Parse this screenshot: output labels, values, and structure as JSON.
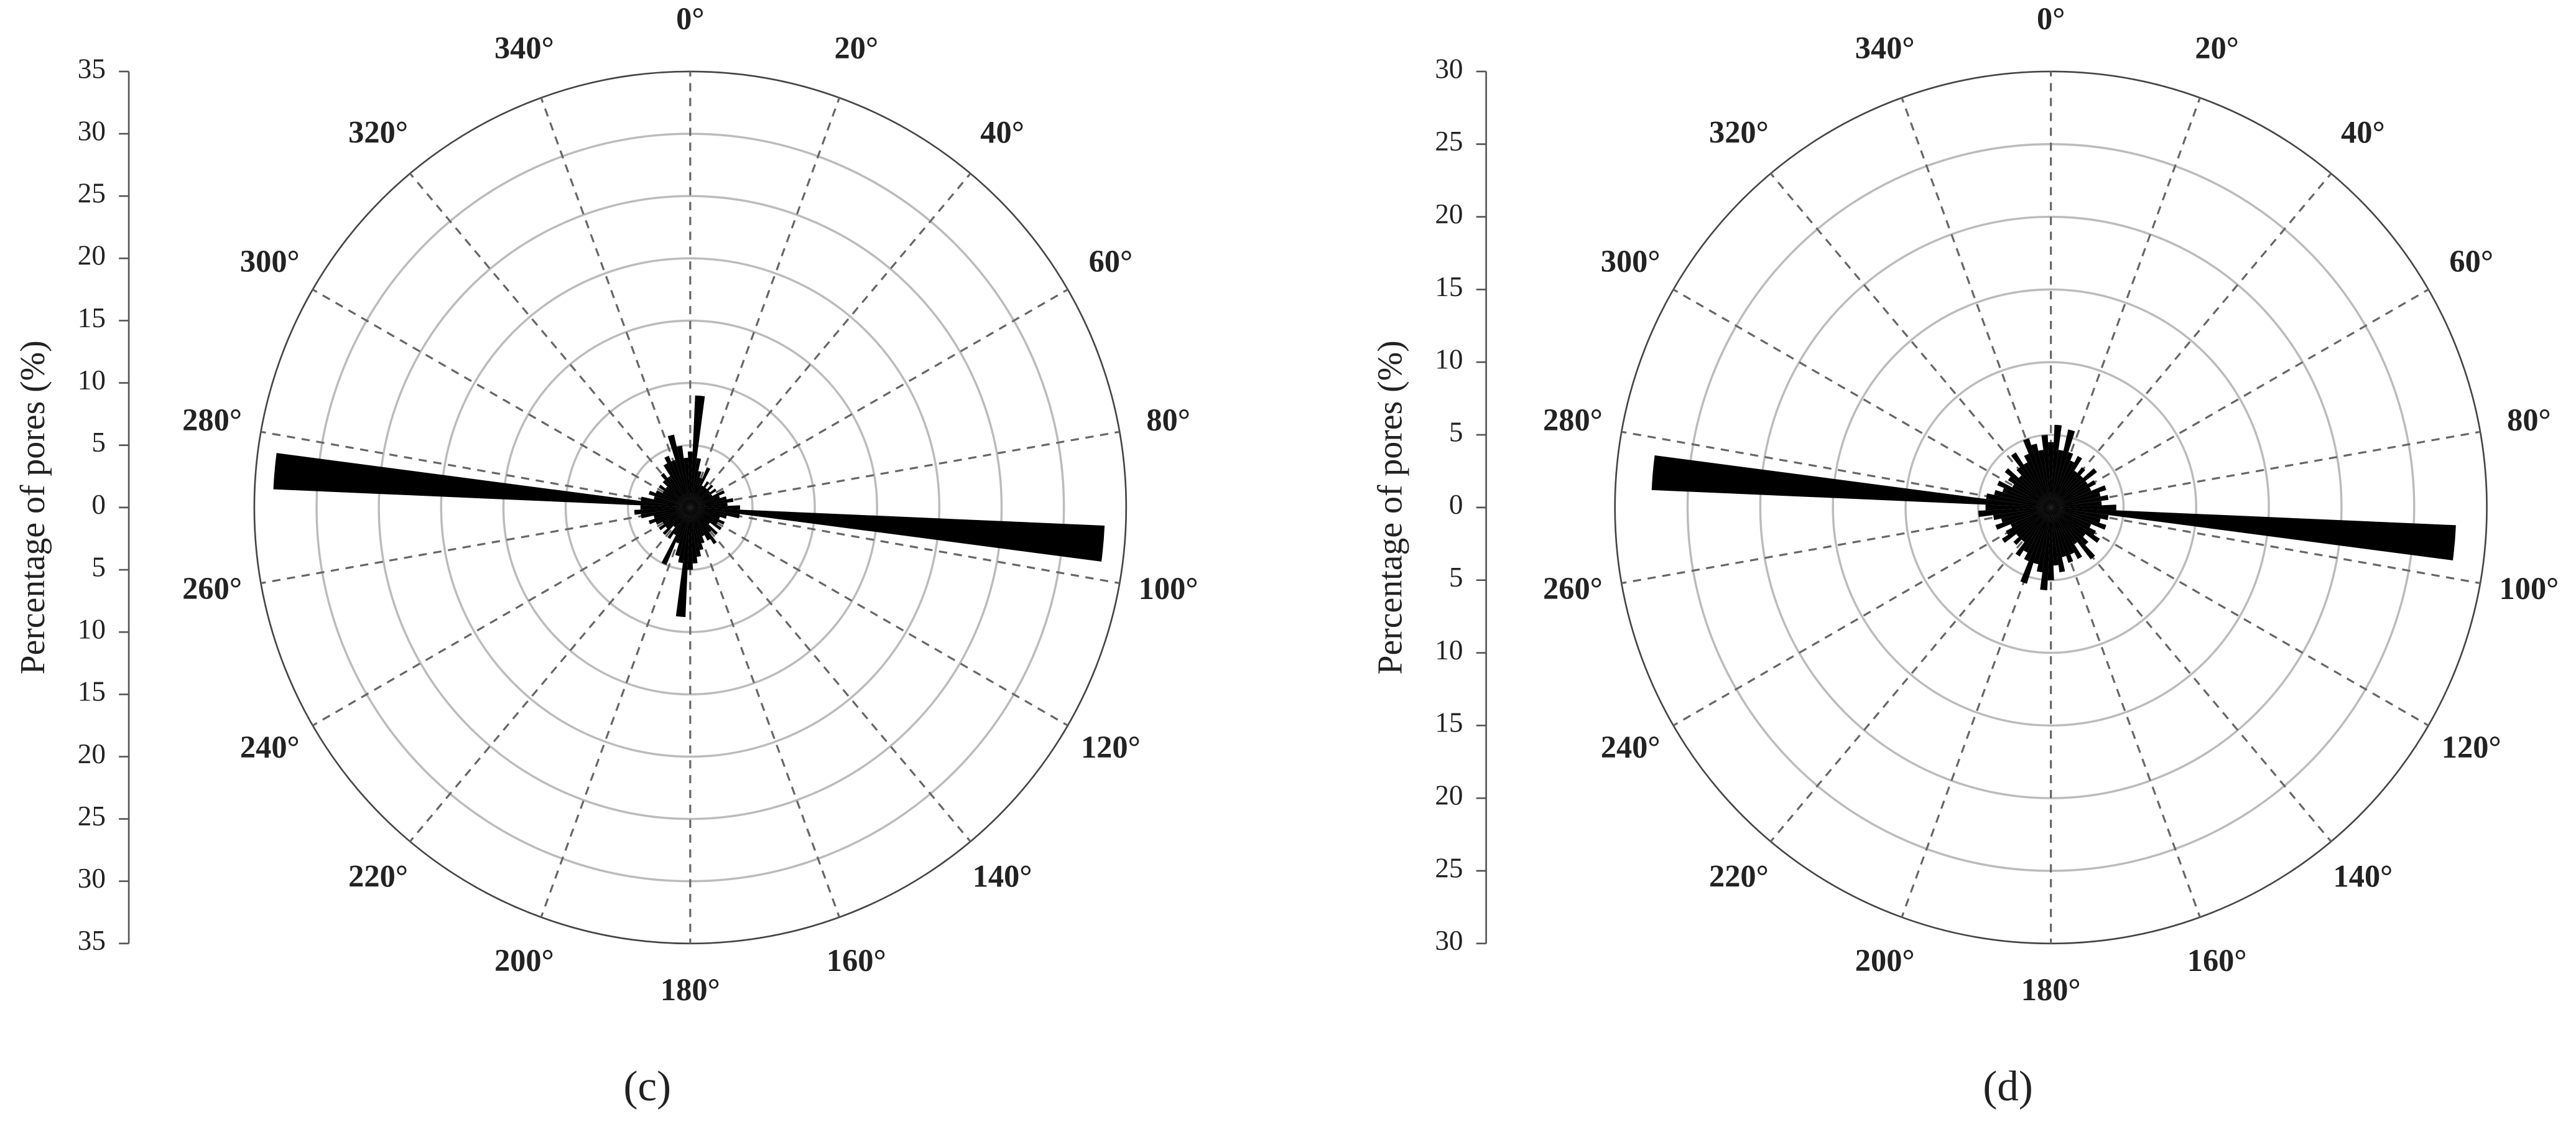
{
  "chart_data": [
    {
      "type": "rose",
      "axis_label": "Percentage of pores (%)",
      "panel_label": "(c)",
      "color": "#000000",
      "grid": true,
      "bin_width": 5,
      "x": [
        0,
        5,
        10,
        15,
        20,
        25,
        30,
        35,
        40,
        45,
        50,
        55,
        60,
        65,
        70,
        75,
        80,
        85,
        90,
        95,
        100,
        105,
        110,
        115,
        120,
        125,
        130,
        135,
        140,
        145,
        150,
        155,
        160,
        165,
        170,
        175,
        180,
        185,
        190,
        195,
        200,
        205,
        210,
        215,
        220,
        225,
        230,
        235,
        240,
        245,
        250,
        255,
        260,
        265,
        270,
        275,
        280,
        285,
        290,
        295,
        300,
        305,
        310,
        315,
        320,
        325,
        330,
        335,
        340,
        345,
        350,
        355
      ],
      "values": [
        4.5,
        9,
        4,
        3,
        2.5,
        3.5,
        2,
        2.5,
        2,
        2.5,
        2,
        2.5,
        2,
        3,
        2.5,
        3,
        3.5,
        3,
        4,
        33.3,
        4,
        3,
        2.5,
        3,
        2.5,
        3,
        2,
        3,
        2.5,
        3.5,
        3,
        2.5,
        3,
        3.5,
        4,
        4.5,
        5,
        8.8,
        4.5,
        4,
        3,
        5,
        2.5,
        3,
        2,
        3,
        2.5,
        3,
        2.5,
        3,
        3.5,
        3,
        4,
        4.5,
        4,
        33.5,
        4,
        3,
        3.5,
        3,
        2.5,
        3,
        2.5,
        3,
        3.5,
        3,
        4,
        4.5,
        4,
        6,
        5,
        4
      ],
      "rlim": [
        0,
        35
      ],
      "rticks": [
        0,
        5,
        10,
        15,
        20,
        25,
        30,
        35
      ],
      "angle_ticks": [
        {
          "value": 0,
          "label": "0°"
        },
        {
          "value": 20,
          "label": "20°"
        },
        {
          "value": 40,
          "label": "40°"
        },
        {
          "value": 60,
          "label": "60°"
        },
        {
          "value": 80,
          "label": "80°"
        },
        {
          "value": 100,
          "label": "100°"
        },
        {
          "value": 120,
          "label": "120°"
        },
        {
          "value": 140,
          "label": "140°"
        },
        {
          "value": 160,
          "label": "160°"
        },
        {
          "value": 180,
          "label": "180°"
        },
        {
          "value": 200,
          "label": "200°"
        },
        {
          "value": 220,
          "label": "220°"
        },
        {
          "value": 240,
          "label": "240°"
        },
        {
          "value": 260,
          "label": "260°"
        },
        {
          "value": 280,
          "label": "280°"
        },
        {
          "value": 300,
          "label": "300°"
        },
        {
          "value": 320,
          "label": "320°"
        },
        {
          "value": 340,
          "label": "340°"
        }
      ]
    },
    {
      "type": "rose",
      "axis_label": "Percentage of pores (%)",
      "panel_label": "(d)",
      "color": "#000000",
      "grid": true,
      "bin_width": 5,
      "x": [
        0,
        5,
        10,
        15,
        20,
        25,
        30,
        35,
        40,
        45,
        50,
        55,
        60,
        65,
        70,
        75,
        80,
        85,
        90,
        95,
        100,
        105,
        110,
        115,
        120,
        125,
        130,
        135,
        140,
        145,
        150,
        155,
        160,
        165,
        170,
        175,
        180,
        185,
        190,
        195,
        200,
        205,
        210,
        215,
        220,
        225,
        230,
        235,
        240,
        245,
        250,
        255,
        260,
        265,
        270,
        275,
        280,
        285,
        290,
        295,
        300,
        305,
        310,
        315,
        320,
        325,
        330,
        335,
        340,
        345,
        350,
        355
      ],
      "values": [
        4.5,
        5.7,
        4,
        5.5,
        4,
        3.5,
        4,
        3,
        3.5,
        3,
        4,
        3,
        3.5,
        3,
        4,
        3.5,
        4,
        3.5,
        4.5,
        27.9,
        4,
        3.5,
        4,
        3,
        3.5,
        4,
        3,
        3.5,
        4.5,
        3,
        4,
        3.5,
        4,
        3.5,
        4.5,
        4,
        5,
        5.7,
        4.5,
        4,
        5.5,
        4,
        3.5,
        4,
        3,
        3.5,
        3,
        4,
        3.5,
        3,
        4,
        3.5,
        4,
        5,
        4.5,
        27.5,
        4.5,
        4,
        3.5,
        4,
        3,
        3.5,
        4,
        3,
        3.5,
        4.5,
        3.5,
        4,
        5,
        4.5,
        4,
        5
      ],
      "rlim": [
        0,
        30
      ],
      "rticks": [
        0,
        5,
        10,
        15,
        20,
        25,
        30
      ],
      "angle_ticks": [
        {
          "value": 0,
          "label": "0°"
        },
        {
          "value": 20,
          "label": "20°"
        },
        {
          "value": 40,
          "label": "40°"
        },
        {
          "value": 60,
          "label": "60°"
        },
        {
          "value": 80,
          "label": "80°"
        },
        {
          "value": 100,
          "label": "100°"
        },
        {
          "value": 120,
          "label": "120°"
        },
        {
          "value": 140,
          "label": "140°"
        },
        {
          "value": 160,
          "label": "160°"
        },
        {
          "value": 180,
          "label": "180°"
        },
        {
          "value": 200,
          "label": "200°"
        },
        {
          "value": 220,
          "label": "220°"
        },
        {
          "value": 240,
          "label": "240°"
        },
        {
          "value": 260,
          "label": "260°"
        },
        {
          "value": 280,
          "label": "280°"
        },
        {
          "value": 300,
          "label": "300°"
        },
        {
          "value": 320,
          "label": "320°"
        },
        {
          "value": 340,
          "label": "340°"
        }
      ]
    }
  ]
}
